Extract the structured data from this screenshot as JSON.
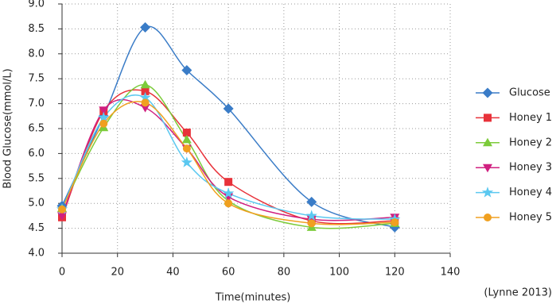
{
  "chart_data": {
    "type": "line",
    "x_label": "Time(minutes)",
    "y_label": "Blood Glucose(mmol/L)",
    "annotation": "(Lynne 2013)",
    "x": [
      0,
      15,
      30,
      45,
      60,
      90,
      120
    ],
    "series": [
      {
        "name": "Glucose",
        "color": "#3a7cc7",
        "marker": "diamond",
        "values": [
          4.95,
          6.75,
          8.53,
          7.67,
          6.9,
          5.03,
          4.52
        ]
      },
      {
        "name": "Honey 1",
        "color": "#e8323a",
        "marker": "square",
        "values": [
          4.72,
          6.85,
          7.25,
          6.42,
          5.43,
          4.65,
          4.65
        ]
      },
      {
        "name": "Honey 2",
        "color": "#7ccb3a",
        "marker": "triangle-up",
        "values": [
          4.9,
          6.52,
          7.38,
          6.28,
          5.05,
          4.52,
          4.6
        ]
      },
      {
        "name": "Honey 3",
        "color": "#d02080",
        "marker": "triangle-down",
        "values": [
          4.75,
          6.87,
          6.92,
          6.1,
          5.13,
          4.68,
          4.72
        ]
      },
      {
        "name": "Honey 4",
        "color": "#5bc8f0",
        "marker": "star",
        "values": [
          4.88,
          6.72,
          7.12,
          5.82,
          5.2,
          4.75,
          4.68
        ]
      },
      {
        "name": "Honey 5",
        "color": "#f0a020",
        "marker": "circle",
        "values": [
          4.88,
          6.6,
          7.02,
          6.1,
          5.0,
          4.6,
          4.62
        ]
      }
    ],
    "xlim": [
      0,
      140
    ],
    "xticks": [
      0,
      20,
      40,
      60,
      80,
      100,
      120,
      140
    ],
    "ylim": [
      4,
      9
    ],
    "yticks": [
      {
        "value": 4,
        "label": "4.0"
      },
      4.5,
      {
        "value": 5,
        "label": "5.0"
      },
      5.5,
      {
        "value": 6,
        "label": "6.0"
      },
      6.5,
      {
        "value": 7,
        "label": "7.0"
      },
      7.5,
      {
        "value": 8,
        "label": "8.0"
      },
      8.5,
      {
        "value": 9,
        "label": "9.0"
      }
    ],
    "grid": true,
    "legend": "right"
  }
}
